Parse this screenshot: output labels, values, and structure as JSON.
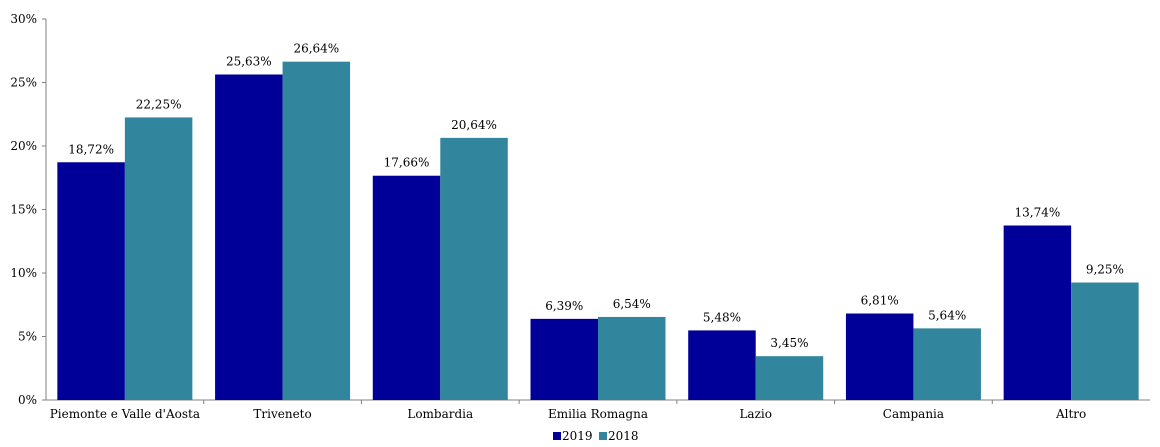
{
  "chart_data": {
    "type": "bar",
    "title": "",
    "xlabel": "",
    "ylabel": "",
    "ylim": [
      0,
      30
    ],
    "y_ticks": [
      "0%",
      "5%",
      "10%",
      "15%",
      "20%",
      "25%",
      "30%"
    ],
    "y_tick_values": [
      0,
      5,
      10,
      15,
      20,
      25,
      30
    ],
    "grid": false,
    "legend_position": "bottom",
    "categories": [
      "Piemonte e Valle d'Aosta",
      "Triveneto",
      "Lombardia",
      "Emilia Romagna",
      "Lazio",
      "Campania",
      "Altro"
    ],
    "series": [
      {
        "name": "2019",
        "color": "#000099",
        "values": [
          18.72,
          25.63,
          17.66,
          6.39,
          5.48,
          6.81,
          13.74
        ],
        "labels": [
          "18,72%",
          "25,63%",
          "17,66%",
          "6,39%",
          "5,48%",
          "6,81%",
          "13,74%"
        ]
      },
      {
        "name": "2018",
        "color": "#31859C",
        "values": [
          22.25,
          26.64,
          20.64,
          6.54,
          3.45,
          5.64,
          9.25
        ],
        "labels": [
          "22,25%",
          "26,64%",
          "20,64%",
          "6,54%",
          "3,45%",
          "5,64%",
          "9,25%"
        ]
      }
    ]
  }
}
